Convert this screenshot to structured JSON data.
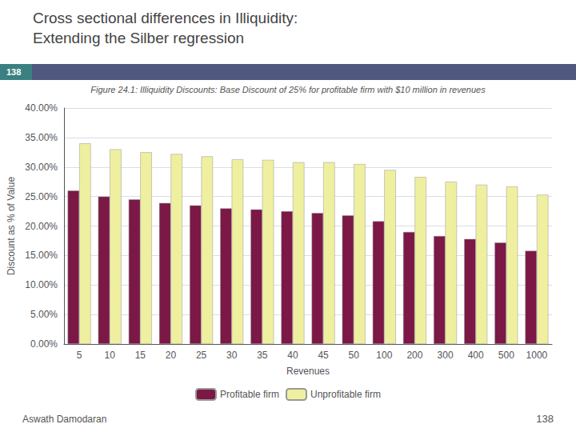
{
  "chart_data": {
    "type": "bar",
    "title": "Cross sectional differences in Illiquidity:",
    "subtitle": "Extending the Silber regression",
    "annotations": [
      "138",
      "Figure 24.1: Illiquidity Discounts: Base Discount of 25% for profitable firm with $10 million in revenues",
      "Aswath Damodaran",
      "138"
    ],
    "x_label": "Revenues",
    "y_label": "Discount as % of Value",
    "categories": [
      "5",
      "10",
      "15",
      "20",
      "25",
      "30",
      "35",
      "40",
      "45",
      "50",
      "100",
      "200",
      "300",
      "400",
      "500",
      "1000"
    ],
    "series": [
      {
        "name": "Profitable firm",
        "color": "#7B1845",
        "values": [
          0.26,
          0.25,
          0.245,
          0.239,
          0.235,
          0.23,
          0.228,
          0.225,
          0.222,
          0.218,
          0.208,
          0.19,
          0.183,
          0.178,
          0.172,
          0.158
        ]
      },
      {
        "name": "Unprofitable firm",
        "color": "#EFEFA0",
        "values": [
          0.34,
          0.33,
          0.325,
          0.322,
          0.318,
          0.313,
          0.312,
          0.308,
          0.308,
          0.305,
          0.295,
          0.283,
          0.275,
          0.27,
          0.267,
          0.253
        ]
      }
    ],
    "ylim": [
      0,
      0.4
    ],
    "yticks": [
      {
        "value": 0.0,
        "label": "0.00%"
      },
      {
        "value": 0.05,
        "label": "5.00%"
      },
      {
        "value": 0.1,
        "label": "10.00%"
      },
      {
        "value": 0.15,
        "label": "15.00%"
      },
      {
        "value": 0.2,
        "label": "20.00%"
      },
      {
        "value": 0.25,
        "label": "25.00%"
      },
      {
        "value": 0.3,
        "label": "30.00%"
      },
      {
        "value": 0.35,
        "label": "35.00%"
      },
      {
        "value": 0.4,
        "label": "40.00%"
      }
    ],
    "grid": true,
    "legend": "bottom"
  }
}
